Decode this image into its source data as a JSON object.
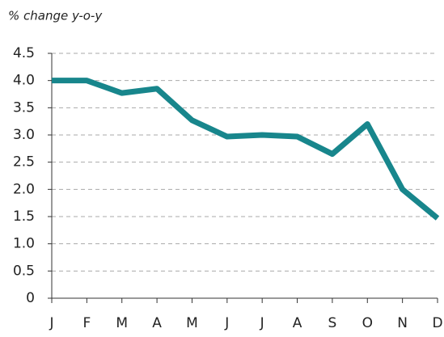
{
  "chart_data": {
    "type": "line",
    "y_label": "% change y-o-y",
    "categories": [
      "J",
      "F",
      "M",
      "A",
      "M",
      "J",
      "J",
      "A",
      "S",
      "O",
      "N",
      "D"
    ],
    "series": [
      {
        "name": "",
        "color": "#18868c",
        "values": [
          4.0,
          4.0,
          3.77,
          3.85,
          3.27,
          2.97,
          3.0,
          2.97,
          2.65,
          3.2,
          2.0,
          1.47
        ]
      }
    ],
    "ylim": [
      0,
      4.5
    ],
    "yticks": [
      0,
      0.5,
      {
        "value": 1,
        "label": "1.0"
      },
      1.5,
      {
        "value": 2,
        "label": "2.0"
      },
      2.5,
      {
        "value": 3,
        "label": "3.0"
      },
      3.5,
      {
        "value": 4,
        "label": "4.0"
      },
      4.5
    ],
    "grid": true
  }
}
